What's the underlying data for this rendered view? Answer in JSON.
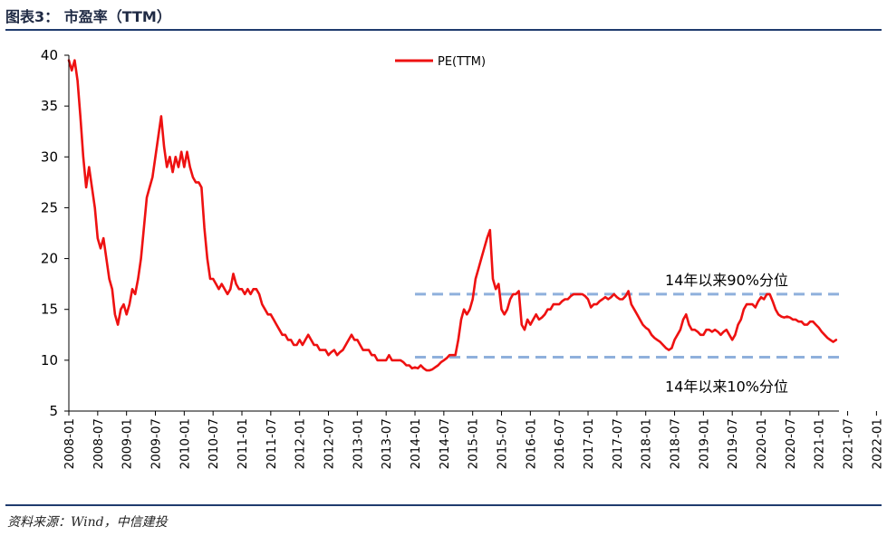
{
  "header": {
    "title": "图表3：  市盈率（TTM）"
  },
  "footer": {
    "source": "资料来源：Wind，中信建投"
  },
  "colors": {
    "line": "#ee1111",
    "reference": "#8fb0dc",
    "rule": "#1f3b6e",
    "axis": "#000000"
  },
  "chart_data": {
    "type": "line",
    "title": "市盈率（TTM）",
    "xlabel": "",
    "ylabel": "",
    "ylim": [
      5,
      40
    ],
    "yticks": [
      "5",
      "10",
      "15",
      "20",
      "25",
      "30",
      "35",
      "40"
    ],
    "xticks": [
      "2008-01",
      "2008-07",
      "2009-01",
      "2009-07",
      "2010-01",
      "2010-07",
      "2011-01",
      "2011-07",
      "2012-01",
      "2012-07",
      "2013-01",
      "2013-07",
      "2014-01",
      "2014-07",
      "2015-01",
      "2015-07",
      "2016-01",
      "2016-07",
      "2017-01",
      "2017-07",
      "2018-01",
      "2018-07",
      "2019-01",
      "2019-07",
      "2020-01",
      "2020-07",
      "2021-01",
      "2021-07",
      "2022-01"
    ],
    "legend": {
      "label": "PE(TTM)",
      "position": "top-center"
    },
    "series": [
      {
        "name": "PE(TTM)",
        "points": [
          [
            0.0,
            39.5
          ],
          [
            0.1,
            38.5
          ],
          [
            0.2,
            39.5
          ],
          [
            0.3,
            37.5
          ],
          [
            0.4,
            34
          ],
          [
            0.5,
            30
          ],
          [
            0.6,
            27
          ],
          [
            0.7,
            29
          ],
          [
            0.8,
            27
          ],
          [
            0.9,
            25
          ],
          [
            1.0,
            22
          ],
          [
            1.1,
            21
          ],
          [
            1.2,
            22
          ],
          [
            1.3,
            20
          ],
          [
            1.4,
            18
          ],
          [
            1.5,
            17
          ],
          [
            1.6,
            14.5
          ],
          [
            1.7,
            13.5
          ],
          [
            1.8,
            15
          ],
          [
            1.9,
            15.5
          ],
          [
            2.0,
            14.5
          ],
          [
            2.1,
            15.5
          ],
          [
            2.2,
            17
          ],
          [
            2.3,
            16.5
          ],
          [
            2.4,
            18
          ],
          [
            2.5,
            20
          ],
          [
            2.6,
            23
          ],
          [
            2.7,
            26
          ],
          [
            2.8,
            27
          ],
          [
            2.9,
            28
          ],
          [
            3.0,
            30
          ],
          [
            3.1,
            32
          ],
          [
            3.2,
            34
          ],
          [
            3.3,
            31
          ],
          [
            3.4,
            29
          ],
          [
            3.5,
            30
          ],
          [
            3.6,
            28.5
          ],
          [
            3.7,
            30
          ],
          [
            3.8,
            29
          ],
          [
            3.9,
            30.5
          ],
          [
            4.0,
            29
          ],
          [
            4.1,
            30.5
          ],
          [
            4.2,
            29
          ],
          [
            4.3,
            28
          ],
          [
            4.4,
            27.5
          ],
          [
            4.5,
            27.5
          ],
          [
            4.6,
            27
          ],
          [
            4.7,
            23
          ],
          [
            4.8,
            20
          ],
          [
            4.9,
            18
          ],
          [
            5.0,
            18
          ],
          [
            5.1,
            17.5
          ],
          [
            5.2,
            17
          ],
          [
            5.3,
            17.5
          ],
          [
            5.4,
            17
          ],
          [
            5.5,
            16.5
          ],
          [
            5.6,
            17
          ],
          [
            5.7,
            18.5
          ],
          [
            5.8,
            17.5
          ],
          [
            5.9,
            17
          ],
          [
            6.0,
            17
          ],
          [
            6.1,
            16.5
          ],
          [
            6.2,
            17
          ],
          [
            6.3,
            16.5
          ],
          [
            6.4,
            17
          ],
          [
            6.5,
            17
          ],
          [
            6.6,
            16.5
          ],
          [
            6.7,
            15.5
          ],
          [
            6.8,
            15
          ],
          [
            6.9,
            14.5
          ],
          [
            7.0,
            14.5
          ],
          [
            7.1,
            14
          ],
          [
            7.2,
            13.5
          ],
          [
            7.3,
            13
          ],
          [
            7.4,
            12.5
          ],
          [
            7.5,
            12.5
          ],
          [
            7.6,
            12
          ],
          [
            7.7,
            12
          ],
          [
            7.8,
            11.5
          ],
          [
            7.9,
            11.5
          ],
          [
            8.0,
            12
          ],
          [
            8.1,
            11.5
          ],
          [
            8.2,
            12
          ],
          [
            8.3,
            12.5
          ],
          [
            8.4,
            12
          ],
          [
            8.5,
            11.5
          ],
          [
            8.6,
            11.5
          ],
          [
            8.7,
            11
          ],
          [
            8.8,
            11
          ],
          [
            8.9,
            11
          ],
          [
            9.0,
            10.5
          ],
          [
            9.1,
            10.8
          ],
          [
            9.2,
            11
          ],
          [
            9.3,
            10.5
          ],
          [
            9.4,
            10.8
          ],
          [
            9.5,
            11
          ],
          [
            9.6,
            11.5
          ],
          [
            9.7,
            12
          ],
          [
            9.8,
            12.5
          ],
          [
            9.9,
            12
          ],
          [
            10.0,
            12
          ],
          [
            10.1,
            11.5
          ],
          [
            10.2,
            11
          ],
          [
            10.3,
            11
          ],
          [
            10.4,
            11
          ],
          [
            10.5,
            10.5
          ],
          [
            10.6,
            10.5
          ],
          [
            10.7,
            10
          ],
          [
            10.8,
            10
          ],
          [
            10.9,
            10
          ],
          [
            11.0,
            10
          ],
          [
            11.1,
            10.5
          ],
          [
            11.2,
            10
          ],
          [
            11.3,
            10
          ],
          [
            11.4,
            10
          ],
          [
            11.5,
            10
          ],
          [
            11.6,
            9.8
          ],
          [
            11.7,
            9.5
          ],
          [
            11.8,
            9.5
          ],
          [
            11.9,
            9.2
          ],
          [
            12.0,
            9.3
          ],
          [
            12.1,
            9.2
          ],
          [
            12.2,
            9.5
          ],
          [
            12.3,
            9.2
          ],
          [
            12.4,
            9.0
          ],
          [
            12.5,
            9.0
          ],
          [
            12.6,
            9.1
          ],
          [
            12.7,
            9.3
          ],
          [
            12.8,
            9.5
          ],
          [
            12.9,
            9.8
          ],
          [
            13.0,
            10
          ],
          [
            13.1,
            10.2
          ],
          [
            13.2,
            10.5
          ],
          [
            13.3,
            10.5
          ],
          [
            13.4,
            10.5
          ],
          [
            13.5,
            12
          ],
          [
            13.6,
            14
          ],
          [
            13.7,
            15
          ],
          [
            13.8,
            14.5
          ],
          [
            13.9,
            15
          ],
          [
            14.0,
            16
          ],
          [
            14.1,
            18
          ],
          [
            14.2,
            19
          ],
          [
            14.3,
            20
          ],
          [
            14.4,
            21
          ],
          [
            14.5,
            22
          ],
          [
            14.6,
            22.8
          ],
          [
            14.7,
            18
          ],
          [
            14.8,
            17
          ],
          [
            14.9,
            17.5
          ],
          [
            15.0,
            15
          ],
          [
            15.1,
            14.5
          ],
          [
            15.2,
            15
          ],
          [
            15.3,
            16
          ],
          [
            15.4,
            16.5
          ],
          [
            15.5,
            16.5
          ],
          [
            15.6,
            16.8
          ],
          [
            15.7,
            13.5
          ],
          [
            15.8,
            13
          ],
          [
            15.9,
            14
          ],
          [
            16.0,
            13.5
          ],
          [
            16.1,
            14
          ],
          [
            16.2,
            14.5
          ],
          [
            16.3,
            14
          ],
          [
            16.4,
            14.2
          ],
          [
            16.5,
            14.5
          ],
          [
            16.6,
            15
          ],
          [
            16.7,
            15
          ],
          [
            16.8,
            15.5
          ],
          [
            16.9,
            15.5
          ],
          [
            17.0,
            15.5
          ],
          [
            17.1,
            15.8
          ],
          [
            17.2,
            16
          ],
          [
            17.3,
            16
          ],
          [
            17.4,
            16.3
          ],
          [
            17.5,
            16.5
          ],
          [
            17.6,
            16.5
          ],
          [
            17.7,
            16.5
          ],
          [
            17.8,
            16.5
          ],
          [
            17.9,
            16.3
          ],
          [
            18.0,
            16
          ],
          [
            18.1,
            15.2
          ],
          [
            18.2,
            15.5
          ],
          [
            18.3,
            15.5
          ],
          [
            18.4,
            15.8
          ],
          [
            18.5,
            16
          ],
          [
            18.6,
            16.2
          ],
          [
            18.7,
            16
          ],
          [
            18.8,
            16.2
          ],
          [
            18.9,
            16.5
          ],
          [
            19.0,
            16.2
          ],
          [
            19.1,
            16
          ],
          [
            19.2,
            16
          ],
          [
            19.3,
            16.3
          ],
          [
            19.4,
            16.8
          ],
          [
            19.5,
            15.5
          ],
          [
            19.6,
            15
          ],
          [
            19.7,
            14.5
          ],
          [
            19.8,
            14
          ],
          [
            19.9,
            13.5
          ],
          [
            20.0,
            13.2
          ],
          [
            20.1,
            13
          ],
          [
            20.2,
            12.5
          ],
          [
            20.3,
            12.2
          ],
          [
            20.4,
            12
          ],
          [
            20.5,
            11.8
          ],
          [
            20.6,
            11.5
          ],
          [
            20.7,
            11.2
          ],
          [
            20.8,
            11
          ],
          [
            20.9,
            11.2
          ],
          [
            21.0,
            12
          ],
          [
            21.1,
            12.5
          ],
          [
            21.2,
            13
          ],
          [
            21.3,
            14
          ],
          [
            21.4,
            14.5
          ],
          [
            21.5,
            13.5
          ],
          [
            21.6,
            13
          ],
          [
            21.7,
            13
          ],
          [
            21.8,
            12.8
          ],
          [
            21.9,
            12.5
          ],
          [
            22.0,
            12.5
          ],
          [
            22.1,
            13
          ],
          [
            22.2,
            13
          ],
          [
            22.3,
            12.8
          ],
          [
            22.4,
            13
          ],
          [
            22.5,
            12.8
          ],
          [
            22.6,
            12.5
          ],
          [
            22.7,
            12.8
          ],
          [
            22.8,
            13
          ],
          [
            22.9,
            12.5
          ],
          [
            23.0,
            12
          ],
          [
            23.1,
            12.5
          ],
          [
            23.2,
            13.5
          ],
          [
            23.3,
            14
          ],
          [
            23.4,
            15
          ],
          [
            23.5,
            15.5
          ],
          [
            23.6,
            15.5
          ],
          [
            23.7,
            15.5
          ],
          [
            23.8,
            15.2
          ],
          [
            23.9,
            15.8
          ],
          [
            24.0,
            16.2
          ],
          [
            24.1,
            16
          ],
          [
            24.2,
            16.5
          ],
          [
            24.3,
            16.5
          ],
          [
            24.4,
            15.8
          ],
          [
            24.5,
            15
          ],
          [
            24.6,
            14.5
          ],
          [
            24.7,
            14.3
          ],
          [
            24.8,
            14.2
          ],
          [
            24.9,
            14.3
          ],
          [
            25.0,
            14.2
          ],
          [
            25.1,
            14
          ],
          [
            25.2,
            14
          ],
          [
            25.3,
            13.8
          ],
          [
            25.4,
            13.8
          ],
          [
            25.5,
            13.5
          ],
          [
            25.6,
            13.5
          ],
          [
            25.7,
            13.8
          ],
          [
            25.8,
            13.8
          ],
          [
            25.9,
            13.5
          ],
          [
            26.0,
            13.2
          ],
          [
            26.1,
            12.8
          ],
          [
            26.2,
            12.5
          ],
          [
            26.3,
            12.2
          ],
          [
            26.4,
            12
          ],
          [
            26.5,
            11.8
          ],
          [
            26.6,
            12
          ]
        ]
      }
    ],
    "reference_lines": [
      {
        "value": 16.5,
        "label": "14年以来90%分位",
        "x_start": 12.0
      },
      {
        "value": 10.3,
        "label": "14年以来10%分位",
        "x_start": 12.0
      }
    ]
  }
}
